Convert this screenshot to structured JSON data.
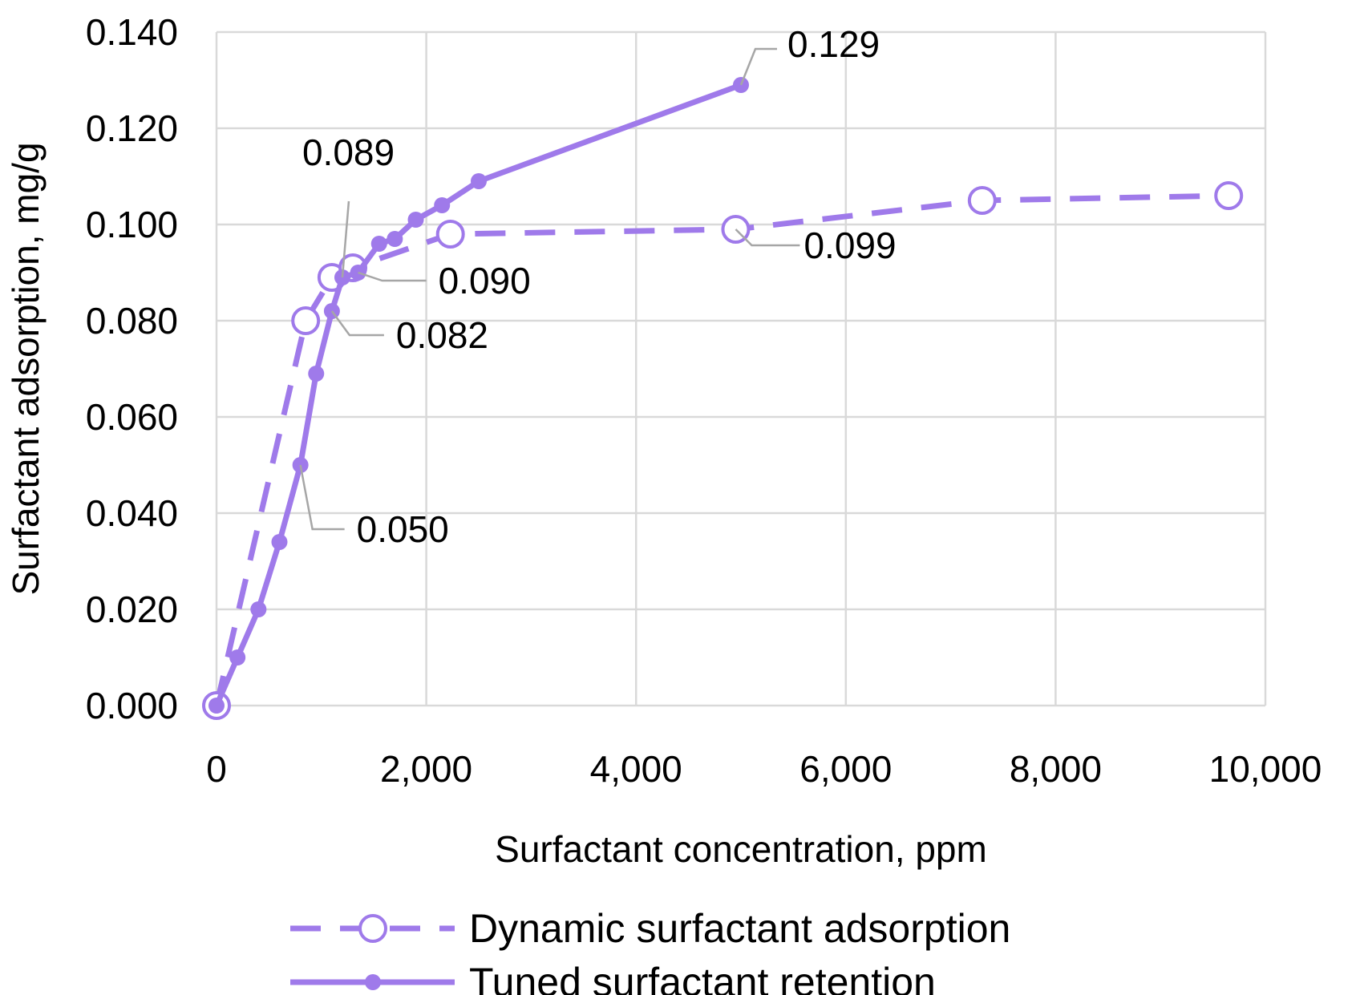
{
  "chart_data": {
    "type": "line",
    "xlabel": "Surfactant concentration, ppm",
    "ylabel": "Surfactant adsorption, mg/g",
    "xlim": [
      0,
      10000
    ],
    "ylim": [
      0,
      0.14
    ],
    "x_ticks": [
      0,
      2000,
      4000,
      6000,
      8000,
      10000
    ],
    "x_tick_labels": [
      "0",
      "2,000",
      "4,000",
      "6,000",
      "8,000",
      "10,000"
    ],
    "y_ticks": [
      0,
      0.02,
      0.04,
      0.06,
      0.08,
      0.1,
      0.12,
      0.14
    ],
    "y_tick_labels": [
      "0.000",
      "0.020",
      "0.040",
      "0.060",
      "0.080",
      "0.100",
      "0.120",
      "0.140"
    ],
    "grid": true,
    "legend_position": "bottom",
    "series": [
      {
        "name": "Dynamic surfactant adsorption",
        "style": "dashed",
        "marker": "open-circle",
        "color": "#9f7aea",
        "x": [
          0,
          850,
          1100,
          1300,
          2230,
          4950,
          7300,
          9650
        ],
        "y": [
          0.0,
          0.08,
          0.089,
          0.091,
          0.098,
          0.099,
          0.105,
          0.106
        ]
      },
      {
        "name": "Tuned surfactant retention",
        "style": "solid",
        "marker": "filled-circle",
        "color": "#9f7aea",
        "x": [
          0,
          200,
          400,
          600,
          800,
          950,
          1100,
          1200,
          1350,
          1550,
          1700,
          1900,
          2150,
          2500,
          5000
        ],
        "y": [
          0.0,
          0.01,
          0.02,
          0.034,
          0.05,
          0.069,
          0.082,
          0.089,
          0.09,
          0.096,
          0.097,
          0.101,
          0.104,
          0.109,
          0.129
        ]
      }
    ],
    "annotations": [
      {
        "text": "0.129",
        "series": 1,
        "x": 5000,
        "y": 0.129
      },
      {
        "text": "0.089",
        "series": 1,
        "x": 1200,
        "y": 0.089
      },
      {
        "text": "0.090",
        "series": 1,
        "x": 1350,
        "y": 0.09
      },
      {
        "text": "0.082",
        "series": 1,
        "x": 1100,
        "y": 0.082
      },
      {
        "text": "0.050",
        "series": 1,
        "x": 800,
        "y": 0.05
      },
      {
        "text": "0.099",
        "series": 0,
        "x": 4950,
        "y": 0.099
      }
    ]
  }
}
